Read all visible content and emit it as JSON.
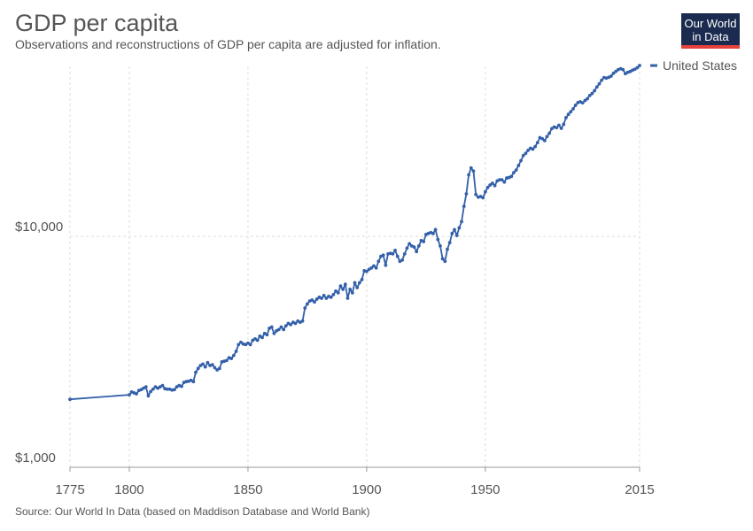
{
  "chart_data": {
    "type": "line",
    "title": "GDP per capita",
    "subtitle": "Observations and reconstructions of GDP per capita are adjusted for inflation.",
    "source": "Source: Our World In Data (based on Maddison Database and World Bank)",
    "log_scale": true,
    "grid": true,
    "legend": "right",
    "x": [
      1775,
      1800,
      1801,
      1802,
      1803,
      1804,
      1805,
      1806,
      1807,
      1808,
      1809,
      1810,
      1811,
      1812,
      1813,
      1814,
      1815,
      1816,
      1817,
      1818,
      1819,
      1820,
      1821,
      1822,
      1823,
      1824,
      1825,
      1826,
      1827,
      1828,
      1829,
      1830,
      1831,
      1832,
      1833,
      1834,
      1835,
      1836,
      1837,
      1838,
      1839,
      1840,
      1841,
      1842,
      1843,
      1844,
      1845,
      1846,
      1847,
      1848,
      1849,
      1850,
      1851,
      1852,
      1853,
      1854,
      1855,
      1856,
      1857,
      1858,
      1859,
      1860,
      1861,
      1862,
      1863,
      1864,
      1865,
      1866,
      1867,
      1868,
      1869,
      1870,
      1871,
      1872,
      1873,
      1874,
      1875,
      1876,
      1877,
      1878,
      1879,
      1880,
      1881,
      1882,
      1883,
      1884,
      1885,
      1886,
      1887,
      1888,
      1889,
      1890,
      1891,
      1892,
      1893,
      1894,
      1895,
      1896,
      1897,
      1898,
      1899,
      1900,
      1901,
      1902,
      1903,
      1904,
      1905,
      1906,
      1907,
      1908,
      1909,
      1910,
      1911,
      1912,
      1913,
      1914,
      1915,
      1916,
      1917,
      1918,
      1919,
      1920,
      1921,
      1922,
      1923,
      1924,
      1925,
      1926,
      1927,
      1928,
      1929,
      1930,
      1931,
      1932,
      1933,
      1934,
      1935,
      1936,
      1937,
      1938,
      1939,
      1940,
      1941,
      1942,
      1943,
      1944,
      1945,
      1946,
      1947,
      1948,
      1949,
      1950,
      1951,
      1952,
      1953,
      1954,
      1955,
      1956,
      1957,
      1958,
      1959,
      1960,
      1961,
      1962,
      1963,
      1964,
      1965,
      1966,
      1967,
      1968,
      1969,
      1970,
      1971,
      1972,
      1973,
      1974,
      1975,
      1976,
      1977,
      1978,
      1979,
      1980,
      1981,
      1982,
      1983,
      1984,
      1985,
      1986,
      1987,
      1988,
      1989,
      1990,
      1991,
      1992,
      1993,
      1994,
      1995,
      1996,
      1997,
      1998,
      1999,
      2000,
      2001,
      2002,
      2003,
      2004,
      2005,
      2006,
      2007,
      2008,
      2009,
      2010,
      2011,
      2012,
      2013,
      2014,
      2015
    ],
    "series": [
      {
        "name": "United States",
        "color": "#3360a9",
        "values": [
          1970,
          2060,
          2120,
          2100,
          2080,
          2150,
          2170,
          2200,
          2230,
          2040,
          2130,
          2180,
          2230,
          2200,
          2230,
          2260,
          2190,
          2180,
          2180,
          2160,
          2170,
          2230,
          2260,
          2240,
          2330,
          2350,
          2360,
          2380,
          2350,
          2580,
          2680,
          2760,
          2800,
          2720,
          2840,
          2760,
          2780,
          2700,
          2640,
          2680,
          2860,
          2880,
          2900,
          2980,
          2960,
          3050,
          3180,
          3400,
          3480,
          3420,
          3400,
          3450,
          3400,
          3550,
          3600,
          3550,
          3700,
          3650,
          3800,
          3750,
          4000,
          4050,
          3800,
          3900,
          3950,
          4050,
          3950,
          4100,
          4200,
          4150,
          4250,
          4200,
          4300,
          4250,
          4300,
          4900,
          5100,
          5250,
          5300,
          5200,
          5350,
          5450,
          5400,
          5550,
          5400,
          5500,
          5450,
          5600,
          5800,
          5700,
          6100,
          5900,
          6200,
          5400,
          5900,
          5700,
          6300,
          6000,
          6300,
          6500,
          7100,
          7050,
          7200,
          7300,
          7450,
          7300,
          7800,
          8200,
          8300,
          7500,
          8400,
          8450,
          8400,
          8700,
          8200,
          7800,
          7900,
          8400,
          8900,
          9300,
          9100,
          9000,
          8600,
          9100,
          9600,
          9500,
          10200,
          10300,
          10400,
          10300,
          10700,
          9700,
          9100,
          8000,
          7800,
          8800,
          9400,
          10300,
          10700,
          10100,
          10900,
          11600,
          13500,
          15300,
          18500,
          19800,
          19200,
          15200,
          14800,
          14900,
          14700,
          15600,
          16300,
          16700,
          17000,
          16600,
          17400,
          17600,
          17600,
          17200,
          17900,
          18000,
          18200,
          18900,
          19400,
          20300,
          21300,
          22400,
          22900,
          23600,
          24100,
          23900,
          24500,
          25500,
          26800,
          26500,
          26000,
          27100,
          28000,
          29300,
          29800,
          29600,
          30300,
          29400,
          30600,
          32700,
          33800,
          34700,
          35700,
          37000,
          38000,
          38300,
          37900,
          38800,
          39500,
          40800,
          41600,
          42800,
          44400,
          45800,
          47500,
          48800,
          48500,
          48900,
          49500,
          50900,
          51900,
          52800,
          53300,
          52800,
          50700,
          51400,
          51800,
          52500,
          53000,
          53800,
          55000
        ]
      }
    ],
    "xlim": [
      1775,
      2015
    ],
    "xticks": [
      1775,
      1800,
      1850,
      1900,
      1950,
      2015
    ],
    "ylim": [
      1000,
      57000
    ],
    "yticks": [
      {
        "value": 1000,
        "label": "$1,000"
      },
      {
        "value": 10000,
        "label": "$10,000"
      }
    ]
  },
  "logo": [
    "Our World",
    "in Data"
  ]
}
